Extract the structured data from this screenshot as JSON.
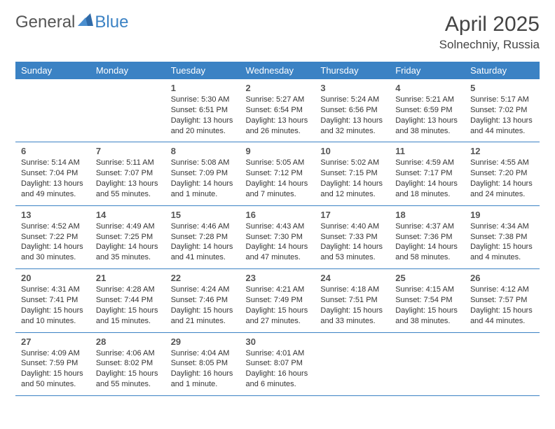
{
  "brand": {
    "part1": "General",
    "part2": "Blue"
  },
  "title": "April 2025",
  "location": "Solnechniy, Russia",
  "colors": {
    "header_bg": "#3b82c4",
    "header_text": "#ffffff",
    "page_bg": "#ffffff",
    "text": "#333333",
    "rule": "#3b82c4"
  },
  "typography": {
    "title_fontsize": 30,
    "location_fontsize": 17,
    "dayheader_fontsize": 13,
    "daynum_fontsize": 13,
    "body_fontsize": 11
  },
  "day_headers": [
    "Sunday",
    "Monday",
    "Tuesday",
    "Wednesday",
    "Thursday",
    "Friday",
    "Saturday"
  ],
  "weeks": [
    [
      null,
      null,
      {
        "n": "1",
        "sunrise": "5:30 AM",
        "sunset": "6:51 PM",
        "daylight": "13 hours and 20 minutes."
      },
      {
        "n": "2",
        "sunrise": "5:27 AM",
        "sunset": "6:54 PM",
        "daylight": "13 hours and 26 minutes."
      },
      {
        "n": "3",
        "sunrise": "5:24 AM",
        "sunset": "6:56 PM",
        "daylight": "13 hours and 32 minutes."
      },
      {
        "n": "4",
        "sunrise": "5:21 AM",
        "sunset": "6:59 PM",
        "daylight": "13 hours and 38 minutes."
      },
      {
        "n": "5",
        "sunrise": "5:17 AM",
        "sunset": "7:02 PM",
        "daylight": "13 hours and 44 minutes."
      }
    ],
    [
      {
        "n": "6",
        "sunrise": "5:14 AM",
        "sunset": "7:04 PM",
        "daylight": "13 hours and 49 minutes."
      },
      {
        "n": "7",
        "sunrise": "5:11 AM",
        "sunset": "7:07 PM",
        "daylight": "13 hours and 55 minutes."
      },
      {
        "n": "8",
        "sunrise": "5:08 AM",
        "sunset": "7:09 PM",
        "daylight": "14 hours and 1 minute."
      },
      {
        "n": "9",
        "sunrise": "5:05 AM",
        "sunset": "7:12 PM",
        "daylight": "14 hours and 7 minutes."
      },
      {
        "n": "10",
        "sunrise": "5:02 AM",
        "sunset": "7:15 PM",
        "daylight": "14 hours and 12 minutes."
      },
      {
        "n": "11",
        "sunrise": "4:59 AM",
        "sunset": "7:17 PM",
        "daylight": "14 hours and 18 minutes."
      },
      {
        "n": "12",
        "sunrise": "4:55 AM",
        "sunset": "7:20 PM",
        "daylight": "14 hours and 24 minutes."
      }
    ],
    [
      {
        "n": "13",
        "sunrise": "4:52 AM",
        "sunset": "7:22 PM",
        "daylight": "14 hours and 30 minutes."
      },
      {
        "n": "14",
        "sunrise": "4:49 AM",
        "sunset": "7:25 PM",
        "daylight": "14 hours and 35 minutes."
      },
      {
        "n": "15",
        "sunrise": "4:46 AM",
        "sunset": "7:28 PM",
        "daylight": "14 hours and 41 minutes."
      },
      {
        "n": "16",
        "sunrise": "4:43 AM",
        "sunset": "7:30 PM",
        "daylight": "14 hours and 47 minutes."
      },
      {
        "n": "17",
        "sunrise": "4:40 AM",
        "sunset": "7:33 PM",
        "daylight": "14 hours and 53 minutes."
      },
      {
        "n": "18",
        "sunrise": "4:37 AM",
        "sunset": "7:36 PM",
        "daylight": "14 hours and 58 minutes."
      },
      {
        "n": "19",
        "sunrise": "4:34 AM",
        "sunset": "7:38 PM",
        "daylight": "15 hours and 4 minutes."
      }
    ],
    [
      {
        "n": "20",
        "sunrise": "4:31 AM",
        "sunset": "7:41 PM",
        "daylight": "15 hours and 10 minutes."
      },
      {
        "n": "21",
        "sunrise": "4:28 AM",
        "sunset": "7:44 PM",
        "daylight": "15 hours and 15 minutes."
      },
      {
        "n": "22",
        "sunrise": "4:24 AM",
        "sunset": "7:46 PM",
        "daylight": "15 hours and 21 minutes."
      },
      {
        "n": "23",
        "sunrise": "4:21 AM",
        "sunset": "7:49 PM",
        "daylight": "15 hours and 27 minutes."
      },
      {
        "n": "24",
        "sunrise": "4:18 AM",
        "sunset": "7:51 PM",
        "daylight": "15 hours and 33 minutes."
      },
      {
        "n": "25",
        "sunrise": "4:15 AM",
        "sunset": "7:54 PM",
        "daylight": "15 hours and 38 minutes."
      },
      {
        "n": "26",
        "sunrise": "4:12 AM",
        "sunset": "7:57 PM",
        "daylight": "15 hours and 44 minutes."
      }
    ],
    [
      {
        "n": "27",
        "sunrise": "4:09 AM",
        "sunset": "7:59 PM",
        "daylight": "15 hours and 50 minutes."
      },
      {
        "n": "28",
        "sunrise": "4:06 AM",
        "sunset": "8:02 PM",
        "daylight": "15 hours and 55 minutes."
      },
      {
        "n": "29",
        "sunrise": "4:04 AM",
        "sunset": "8:05 PM",
        "daylight": "16 hours and 1 minute."
      },
      {
        "n": "30",
        "sunrise": "4:01 AM",
        "sunset": "8:07 PM",
        "daylight": "16 hours and 6 minutes."
      },
      null,
      null,
      null
    ]
  ],
  "labels": {
    "sunrise": "Sunrise: ",
    "sunset": "Sunset: ",
    "daylight": "Daylight: "
  }
}
